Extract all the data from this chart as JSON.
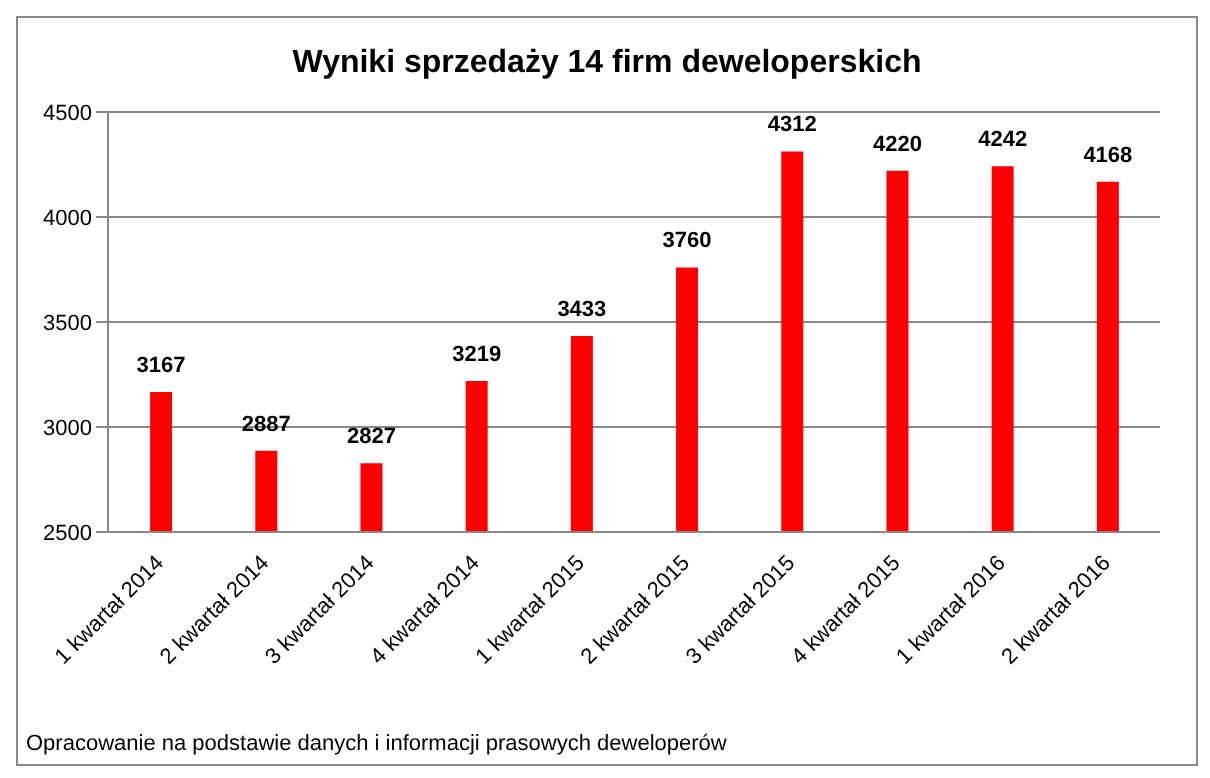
{
  "chart_data": {
    "type": "bar",
    "title": "Wyniki sprzedaży 14 firm deweloperskich",
    "categories": [
      "1 kwartał 2014",
      "2 kwartał 2014",
      "3 kwartał 2014",
      "4 kwartał 2014",
      "1 kwartał 2015",
      "2 kwartał 2015",
      "3 kwartał 2015",
      "4 kwartał 2015",
      "1 kwartał 2016",
      "2 kwartał 2016"
    ],
    "values": [
      3167,
      2887,
      2827,
      3219,
      3433,
      3760,
      4312,
      4220,
      4242,
      4168
    ],
    "color": "#ff0000",
    "ylim": [
      2500,
      4500
    ],
    "yticks": [
      2500,
      3000,
      3500,
      4000,
      4500
    ],
    "grid": "y",
    "data_labels": true,
    "annotations": [
      "Opracowanie na podstawie danych i informacji prasowych deweloperów"
    ]
  }
}
